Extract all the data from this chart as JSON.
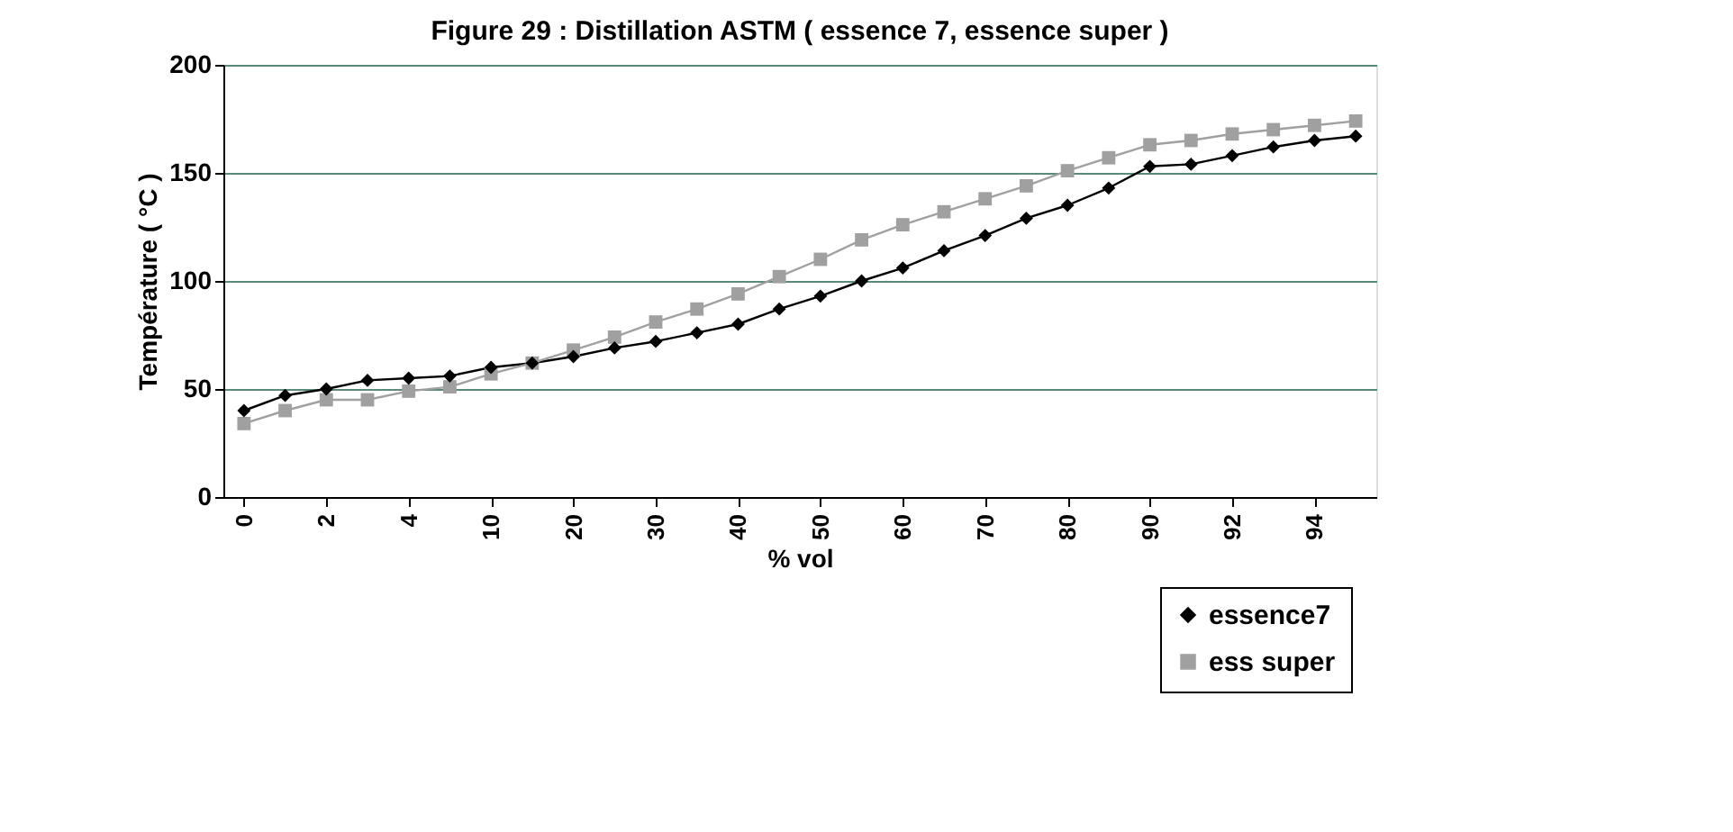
{
  "chart_data": {
    "type": "line",
    "title": "Figure 29 : Distillation ASTM ( essence 7, essence super )",
    "xlabel": "% vol",
    "ylabel": "Température ( °C )",
    "categories": [
      "0",
      null,
      "2",
      null,
      "4",
      null,
      "10",
      null,
      "20",
      null,
      "30",
      null,
      "40",
      null,
      "50",
      null,
      "60",
      null,
      "70",
      null,
      "80",
      null,
      "90",
      null,
      "92",
      null,
      "94",
      null
    ],
    "series": [
      {
        "name": "essence7",
        "color": "#000000",
        "marker": "diamond",
        "values": [
          40,
          47,
          50,
          54,
          55,
          56,
          60,
          62,
          65,
          69,
          72,
          76,
          80,
          87,
          93,
          100,
          106,
          114,
          121,
          129,
          135,
          143,
          153,
          154,
          158,
          162,
          165,
          167
        ]
      },
      {
        "name": "ess super",
        "color": "#a0a0a0",
        "marker": "square",
        "values": [
          34,
          40,
          45,
          45,
          49,
          51,
          57,
          62,
          68,
          74,
          81,
          87,
          94,
          102,
          110,
          119,
          126,
          132,
          138,
          144,
          151,
          157,
          163,
          165,
          168,
          170,
          172,
          174
        ]
      }
    ],
    "ylim": [
      0,
      200
    ],
    "yticks": [
      0,
      50,
      100,
      150,
      200
    ],
    "grid": "y",
    "legend": "bottom right",
    "line_style": "solid"
  }
}
